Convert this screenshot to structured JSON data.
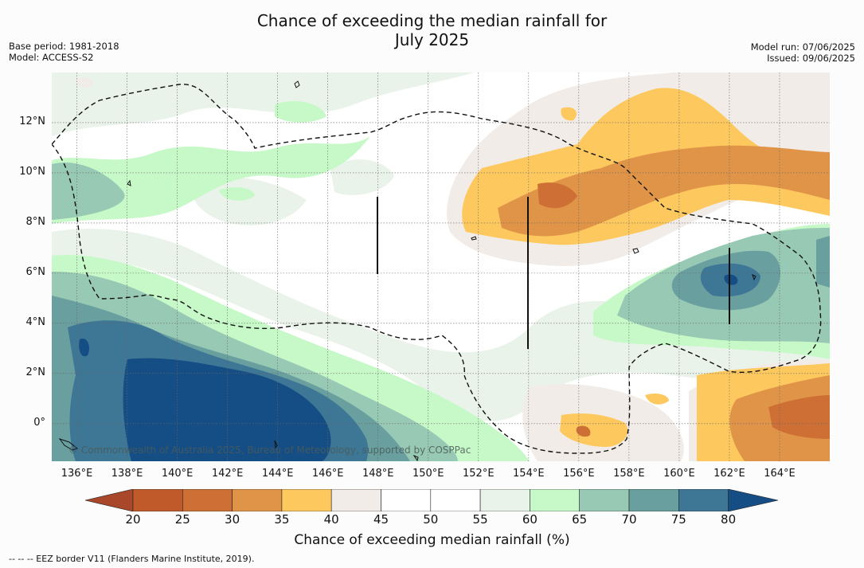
{
  "title": {
    "line1": "Chance of exceeding the median rainfall for",
    "line2": "July 2025"
  },
  "meta_left": {
    "base_period": "Base period: 1981-2018",
    "model": "Model: ACCESS-S2"
  },
  "meta_right": {
    "model_run": "Model run: 07/06/2025",
    "issued": "Issued: 09/06/2025"
  },
  "copyright": "© Commonwealth of Australia 2025, Bureau of Meteorology, supported by COSPPac",
  "footnote": "-- -- -- EEZ border V11 (Flanders Marine Institute, 2019).",
  "colorbar": {
    "title": "Chance of exceeding median rainfall (%)",
    "labels": [
      "20",
      "25",
      "30",
      "35",
      "40",
      "45",
      "50",
      "55",
      "60",
      "65",
      "70",
      "75",
      "80"
    ],
    "colors": [
      "#a8472a",
      "#c05a2b",
      "#ce6f35",
      "#e09448",
      "#fdc95f",
      "#f2ece8",
      "#ffffff",
      "#ffffff",
      "#e9f3ea",
      "#c7f9c8",
      "#97c9b4",
      "#699f9f",
      "#3e7696",
      "#154d85"
    ],
    "extend_low_color": "#a8472a",
    "extend_high_color": "#154d85"
  },
  "map": {
    "lon_range": [
      135,
      166
    ],
    "lat_range": [
      -1.5,
      14
    ],
    "x_ticks": [
      "136°E",
      "138°E",
      "140°E",
      "142°E",
      "144°E",
      "146°E",
      "148°E",
      "150°E",
      "152°E",
      "154°E",
      "156°E",
      "158°E",
      "160°E",
      "162°E",
      "164°E"
    ],
    "x_tick_values": [
      136,
      138,
      140,
      142,
      144,
      146,
      148,
      150,
      152,
      154,
      156,
      158,
      160,
      162,
      164
    ],
    "y_ticks": [
      "12°N",
      "10°N",
      "8°N",
      "6°N",
      "4°N",
      "2°N",
      "0°"
    ],
    "y_tick_values": [
      12,
      10,
      8,
      6,
      4,
      2,
      0
    ]
  }
}
